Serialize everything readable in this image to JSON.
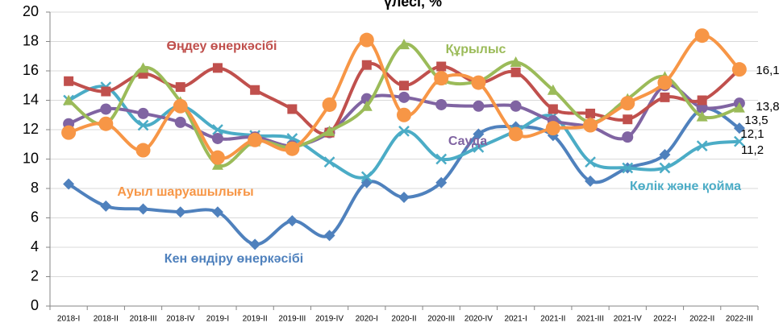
{
  "chart_data": {
    "type": "line",
    "title": "үлесі, %",
    "categories": [
      "2018-I",
      "2018-II",
      "2018-III",
      "2018-IV",
      "2019-I",
      "2019-II",
      "2019-III",
      "2019-IV",
      "2020-I",
      "2020-II",
      "2020-III",
      "2020-IV",
      "2021-I",
      "2021-II",
      "2021-III",
      "2021-IV",
      "2022-I",
      "2022-II",
      "2022-III"
    ],
    "ylim": [
      0,
      20
    ],
    "yticks": [
      0,
      2,
      4,
      6,
      8,
      10,
      12,
      14,
      16,
      18,
      20
    ],
    "grid": true,
    "series": [
      {
        "name": "Өңдеу өнеркәсібі",
        "color": "#c0504d",
        "marker": "square",
        "values": [
          15.3,
          14.6,
          15.8,
          14.9,
          16.2,
          14.7,
          13.4,
          11.8,
          16.4,
          15.0,
          16.3,
          15.2,
          15.9,
          13.4,
          13.1,
          12.7,
          14.2,
          14.0,
          16.1
        ],
        "value_labels": [
          null,
          null,
          null,
          null,
          null,
          null,
          null,
          null,
          null,
          null,
          null,
          null,
          null,
          null,
          null,
          null,
          null,
          null,
          "16,1"
        ]
      },
      {
        "name": "Құрылыс",
        "color": "#9bbb59",
        "marker": "triangle",
        "values": [
          14.0,
          12.4,
          16.2,
          13.9,
          9.6,
          11.2,
          10.8,
          11.9,
          13.6,
          17.8,
          15.4,
          15.3,
          16.6,
          14.7,
          12.5,
          14.1,
          15.6,
          12.9,
          13.5
        ],
        "value_labels": [
          null,
          null,
          null,
          null,
          null,
          null,
          null,
          null,
          null,
          null,
          null,
          null,
          null,
          null,
          null,
          null,
          null,
          null,
          "13,5"
        ]
      },
      {
        "name": "Сауда",
        "color": "#8064a2",
        "marker": "circle",
        "values": [
          12.4,
          13.4,
          13.1,
          12.5,
          11.4,
          11.5,
          10.9,
          11.8,
          14.1,
          14.2,
          13.7,
          13.6,
          13.6,
          12.6,
          12.2,
          11.5,
          15.0,
          13.5,
          13.8
        ],
        "value_labels": [
          null,
          null,
          null,
          null,
          null,
          null,
          null,
          null,
          null,
          null,
          null,
          null,
          null,
          null,
          null,
          null,
          null,
          null,
          "13,8"
        ]
      },
      {
        "name": "Ауыл шаруашылығы",
        "color": "#f79646",
        "marker": "circle",
        "values": [
          11.8,
          12.4,
          10.6,
          13.6,
          10.1,
          11.3,
          10.7,
          13.7,
          18.1,
          13.0,
          15.5,
          15.2,
          11.7,
          12.1,
          12.3,
          13.8,
          15.2,
          18.4,
          16.1
        ]
      },
      {
        "name": "Көлік және қойма",
        "color": "#4bacc6",
        "marker": "x",
        "values": [
          14.0,
          14.9,
          12.3,
          13.6,
          12.0,
          11.6,
          11.4,
          9.8,
          8.8,
          11.9,
          10.0,
          10.8,
          11.9,
          12.9,
          9.8,
          9.4,
          9.4,
          10.9,
          11.2
        ],
        "value_labels": [
          null,
          null,
          null,
          null,
          null,
          null,
          null,
          null,
          null,
          null,
          null,
          null,
          null,
          null,
          null,
          null,
          null,
          null,
          "11,2"
        ]
      },
      {
        "name": "Кен өндіру өнеркәсібі",
        "color": "#4f81bd",
        "marker": "diamond",
        "values": [
          8.3,
          6.8,
          6.6,
          6.4,
          6.4,
          4.2,
          5.8,
          4.8,
          8.4,
          7.4,
          8.4,
          11.7,
          12.2,
          11.6,
          8.5,
          9.4,
          10.3,
          13.4,
          12.1
        ],
        "value_labels": [
          null,
          null,
          null,
          null,
          null,
          null,
          null,
          null,
          null,
          null,
          null,
          null,
          null,
          null,
          null,
          null,
          null,
          null,
          "12,1"
        ]
      }
    ]
  }
}
